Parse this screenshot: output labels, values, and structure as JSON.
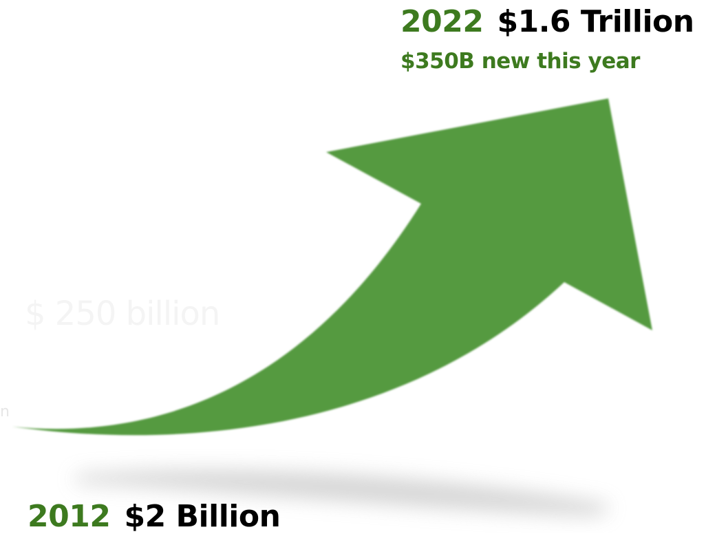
{
  "top": {
    "year": "2022",
    "value": "$1.6 Trillion",
    "subtitle": "$350B new this year"
  },
  "bottom": {
    "year": "2012",
    "value": "$2 Billion"
  },
  "background_text": {
    "faded_label": "$ 250 billion",
    "faded_fragment": "n"
  },
  "colors": {
    "accent": "#3d7a1f",
    "arrow": "#559a41",
    "ink": "#000000"
  }
}
